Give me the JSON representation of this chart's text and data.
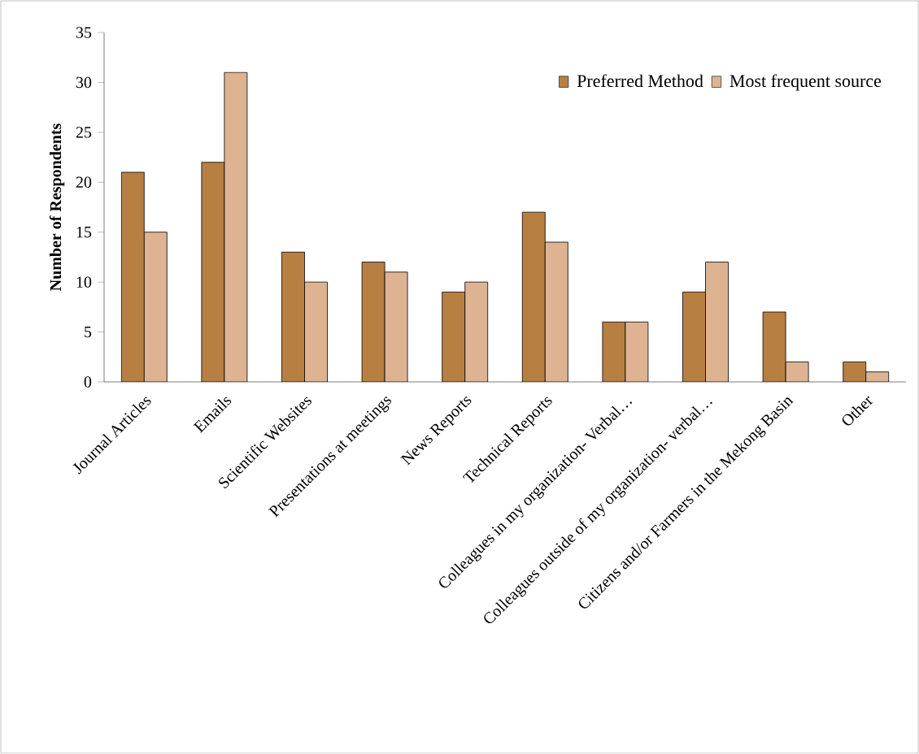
{
  "chart_data": {
    "type": "bar",
    "ylabel": "**Number of Respondents**",
    "categories": [
      "Journal Articles",
      "Emails",
      "Scientific Websites",
      "Presentations at meetings",
      "News Reports",
      "Technical Reports",
      "Colleagues in my organization- Verbal…",
      "Colleagues outside of my organization- verbal…",
      "Citizens and/or Farmers in the Mekong Basin",
      "Other"
    ],
    "series": [
      {
        "name": "Preferred Method",
        "color": "#b87f42",
        "values": [
          21,
          22,
          13,
          12,
          9,
          17,
          6,
          9,
          7,
          2
        ]
      },
      {
        "name": "Most frequent source",
        "color": "#deb391",
        "values": [
          15,
          31,
          10,
          11,
          10,
          14,
          6,
          12,
          2,
          1
        ]
      }
    ],
    "ylim": [
      0,
      35
    ],
    "yticks": [
      0,
      5,
      10,
      15,
      20,
      25,
      30,
      35
    ],
    "grid": false,
    "legend": "top right"
  }
}
